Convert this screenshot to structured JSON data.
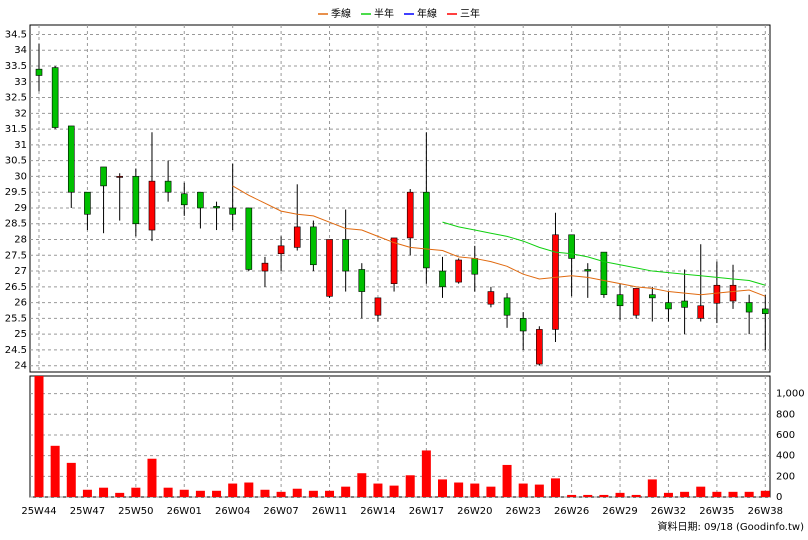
{
  "chart_data": [
    {
      "type": "candlestick",
      "open": [
        33.4,
        33.45,
        31.6,
        29.5,
        30.3,
        30.0,
        30.0,
        28.3,
        29.85,
        29.45,
        29.5,
        29.05,
        29.0,
        29.0,
        27.0,
        27.55,
        27.75,
        28.4,
        26.2,
        28.0,
        27.05,
        25.6,
        26.6,
        28.05,
        29.5,
        27.0,
        26.65,
        27.4,
        25.95,
        26.15,
        25.5,
        24.05,
        25.15,
        28.15,
        27.05,
        27.6,
        26.25,
        25.6,
        26.25,
        26.0,
        26.05,
        25.5,
        25.98,
        26.05,
        26.0,
        25.8
      ],
      "high": [
        34.2,
        33.5,
        31.6,
        29.5,
        30.3,
        30.1,
        30.25,
        31.4,
        30.5,
        29.8,
        29.5,
        29.2,
        30.4,
        29.0,
        27.45,
        28.1,
        29.75,
        28.6,
        28.0,
        28.95,
        27.25,
        26.15,
        28.05,
        29.6,
        31.4,
        27.45,
        27.4,
        27.8,
        26.5,
        26.3,
        25.7,
        25.25,
        28.85,
        28.15,
        27.25,
        27.6,
        26.6,
        26.45,
        26.5,
        26.35,
        27.05,
        27.85,
        27.3,
        27.2,
        26.25,
        26.25
      ],
      "low": [
        32.7,
        31.5,
        29.0,
        28.3,
        28.2,
        28.6,
        28.1,
        27.95,
        29.2,
        28.75,
        28.35,
        28.3,
        28.3,
        27.0,
        26.5,
        27.0,
        27.65,
        27.0,
        26.15,
        26.35,
        25.5,
        25.4,
        26.35,
        27.5,
        26.6,
        26.15,
        26.6,
        26.35,
        25.85,
        25.2,
        24.5,
        24.0,
        24.75,
        26.2,
        26.15,
        26.15,
        25.45,
        25.5,
        25.4,
        25.4,
        25.0,
        25.4,
        25.35,
        25.8,
        25.0,
        24.5
      ],
      "close": [
        33.2,
        31.55,
        29.5,
        28.8,
        29.7,
        30.0,
        28.5,
        29.85,
        29.5,
        29.1,
        29.0,
        29.0,
        28.8,
        27.05,
        27.25,
        27.8,
        28.4,
        27.2,
        28.0,
        27.0,
        26.35,
        26.15,
        28.05,
        29.5,
        27.1,
        26.5,
        27.35,
        26.9,
        26.35,
        25.6,
        25.1,
        25.15,
        28.15,
        27.4,
        27.0,
        26.25,
        25.9,
        26.45,
        26.15,
        25.8,
        25.85,
        25.9,
        26.55,
        26.55,
        25.7,
        25.65
      ],
      "up_color": "#ff0000",
      "down_color": "#00c000",
      "series": [
        {
          "name": "季線",
          "color": "#e06a10",
          "values": [
            null,
            null,
            null,
            null,
            null,
            null,
            null,
            null,
            null,
            null,
            null,
            null,
            29.7,
            29.4,
            29.15,
            28.9,
            28.8,
            28.75,
            28.55,
            28.35,
            28.3,
            28.1,
            27.9,
            27.75,
            27.7,
            27.65,
            27.45,
            27.4,
            27.3,
            27.15,
            26.9,
            26.75,
            26.8,
            26.85,
            26.8,
            26.7,
            26.6,
            26.5,
            26.45,
            26.35,
            26.3,
            26.25,
            26.3,
            26.35,
            26.4,
            26.2
          ]
        },
        {
          "name": "半年",
          "color": "#10d010",
          "values": [
            null,
            null,
            null,
            null,
            null,
            null,
            null,
            null,
            null,
            null,
            null,
            null,
            null,
            null,
            null,
            null,
            null,
            null,
            null,
            null,
            null,
            null,
            null,
            null,
            null,
            28.55,
            28.4,
            28.3,
            28.2,
            28.1,
            27.95,
            27.75,
            27.6,
            27.55,
            27.45,
            27.3,
            27.2,
            27.1,
            27.0,
            26.95,
            26.9,
            26.85,
            26.8,
            26.75,
            26.7,
            26.55
          ]
        },
        {
          "name": "年線",
          "color": "#0000ff",
          "values": [
            null,
            null,
            null,
            null,
            null,
            null,
            null,
            null,
            null,
            null,
            null,
            null,
            null,
            null,
            null,
            null,
            null,
            null,
            null,
            null,
            null,
            null,
            null,
            null,
            null,
            null,
            null,
            null,
            null,
            null,
            null,
            null,
            null,
            null,
            null,
            null,
            null,
            null,
            null,
            null,
            null,
            null,
            null,
            null,
            null,
            null
          ]
        },
        {
          "name": "三年",
          "color": "#ff0000",
          "values": [
            null,
            null,
            null,
            null,
            null,
            null,
            null,
            null,
            null,
            null,
            null,
            null,
            null,
            null,
            null,
            null,
            null,
            null,
            null,
            null,
            null,
            null,
            null,
            null,
            null,
            null,
            null,
            null,
            null,
            null,
            null,
            null,
            null,
            null,
            null,
            null,
            null,
            null,
            null,
            null,
            null,
            null,
            null,
            null,
            null,
            null
          ]
        }
      ],
      "ylim": [
        23.8,
        34.8
      ],
      "yticks": [
        24,
        24.5,
        25,
        25.5,
        26,
        26.5,
        27,
        27.5,
        28,
        28.5,
        29,
        29.5,
        30,
        30.5,
        31,
        31.5,
        32,
        32.5,
        33,
        33.5,
        34,
        34.5
      ],
      "grid": true,
      "legend": "top"
    },
    {
      "type": "bar",
      "categories": [
        "25W44",
        null,
        null,
        "25W47",
        null,
        null,
        "25W50",
        null,
        null,
        "26W01",
        null,
        null,
        "26W04",
        null,
        null,
        "26W07",
        null,
        null,
        "26W11",
        null,
        null,
        "26W14",
        null,
        null,
        "26W17",
        null,
        null,
        "26W20",
        null,
        null,
        "26W23",
        null,
        null,
        "26W26",
        null,
        null,
        "26W29",
        null,
        null,
        "26W32",
        null,
        null,
        "26W35",
        null,
        null,
        "26W38"
      ],
      "values": [
        1170,
        495,
        330,
        70,
        90,
        40,
        90,
        370,
        90,
        70,
        60,
        60,
        130,
        140,
        70,
        50,
        80,
        60,
        60,
        100,
        230,
        130,
        110,
        210,
        450,
        170,
        140,
        130,
        100,
        310,
        130,
        120,
        180,
        20,
        20,
        20,
        40,
        20,
        170,
        40,
        50,
        100,
        50,
        50,
        50,
        60
      ],
      "color": "#ff0000",
      "ylim": [
        0,
        1170
      ],
      "yticks": [
        0,
        200,
        400,
        600,
        800,
        {
          "value": 1000,
          "label": "1,000"
        }
      ],
      "grid": true,
      "footer": "資料日期: 09/18  (Goodinfo.tw)"
    }
  ]
}
